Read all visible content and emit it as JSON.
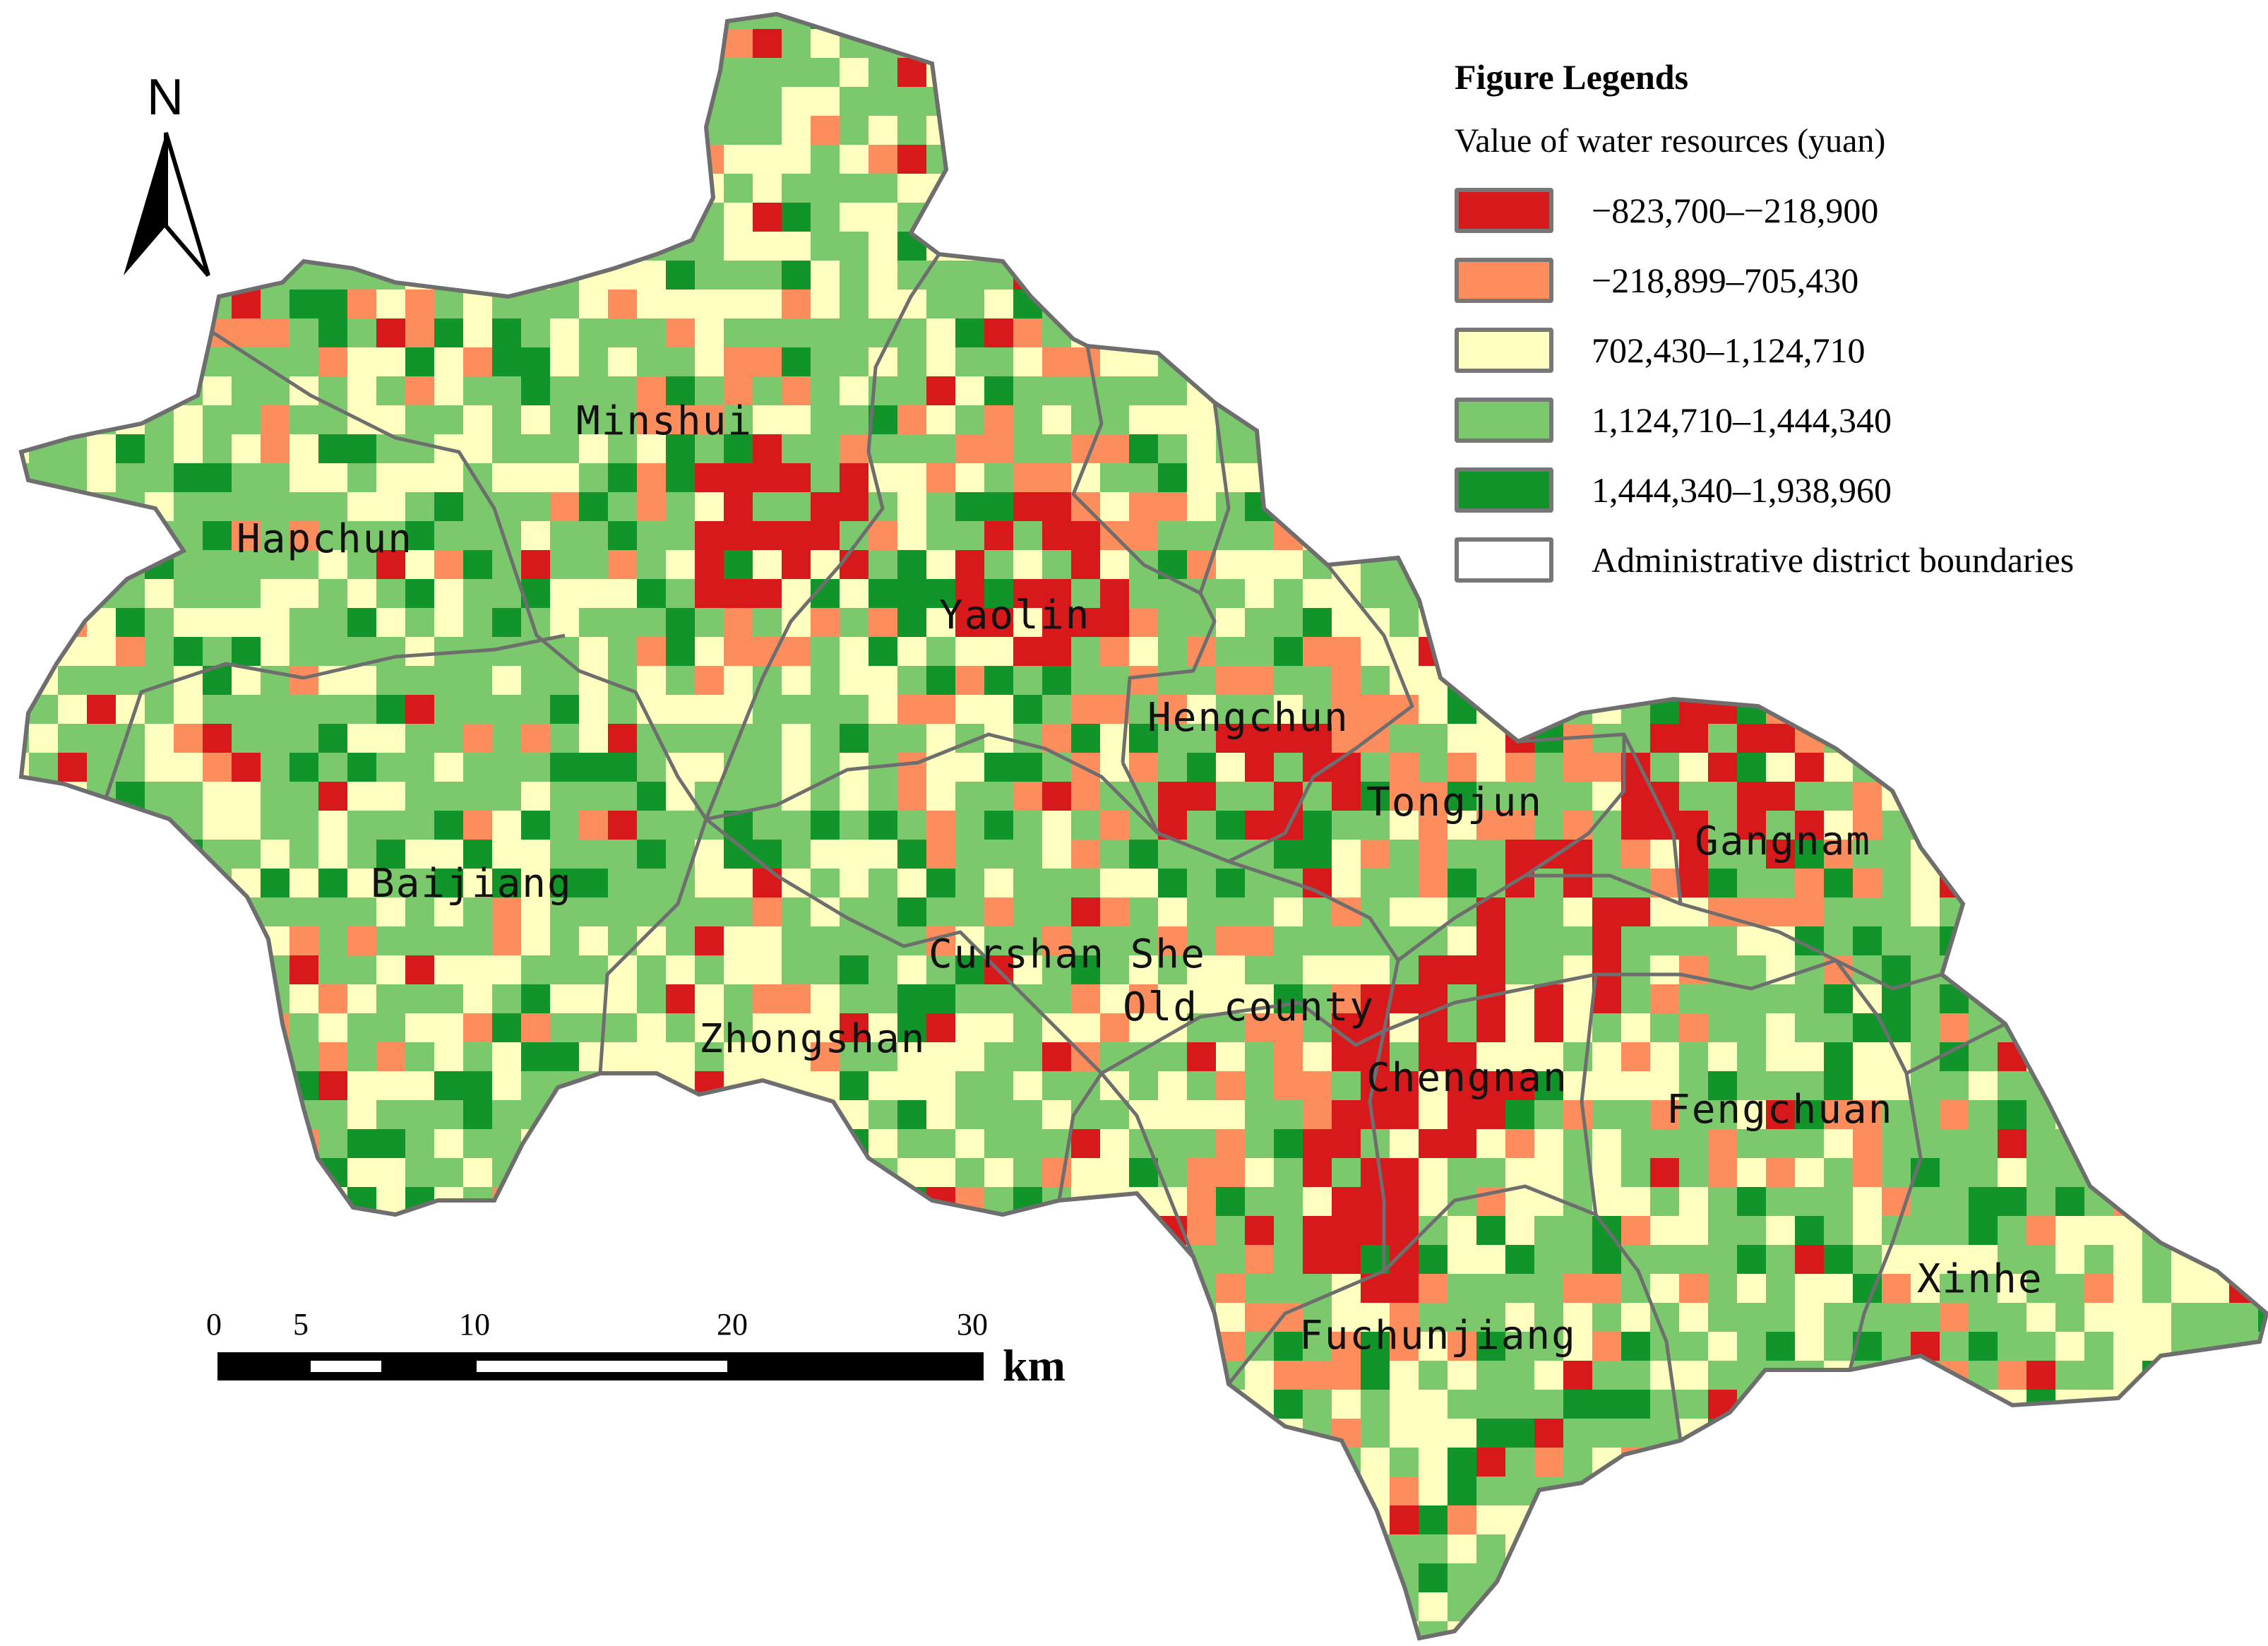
{
  "legend": {
    "title": "Figure Legends",
    "subtitle": "Value of water resources (yuan)",
    "classes": [
      {
        "label": "−823,700–−218,900",
        "color": "#d7191c"
      },
      {
        "label": "−218,899–705,430",
        "color": "#fd8d5c"
      },
      {
        "label": "702,430–1,124,710",
        "color": "#ffffc0"
      },
      {
        "label": "1,124,710–1,444,340",
        "color": "#7cc86c"
      },
      {
        "label": "1,444,340–1,938,960",
        "color": "#11952b"
      }
    ],
    "boundary_label": "Administrative district boundaries",
    "boundary_color": "#ffffff"
  },
  "north_arrow": {
    "letter": "N"
  },
  "scale_bar": {
    "ticks": [
      "0",
      "5",
      "10",
      "20",
      "30"
    ],
    "unit": "km"
  },
  "districts": [
    "Minshui",
    "Hapchun",
    "Yaolin",
    "Hengchun",
    "Tongjun",
    "Gangnam",
    "Baijiang",
    "Curshan She",
    "Old county",
    "Zhongshan",
    "Chengnan",
    "Fengchuan",
    "Xinhe",
    "Fuchunjiang"
  ],
  "colors": {
    "boundary_line": "#6e6e6e",
    "background": "#ffffff"
  }
}
